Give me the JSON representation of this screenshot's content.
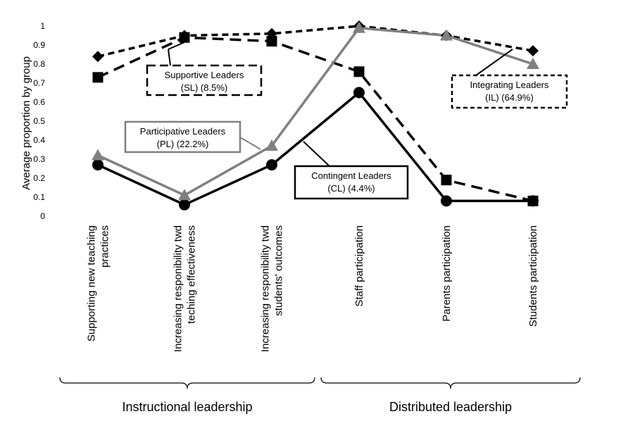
{
  "chart_data": {
    "type": "line",
    "ylabel": "Average proportion by group",
    "ylim": [
      0,
      1
    ],
    "yticks": [
      "0",
      "0.1",
      "0.2",
      "0.3",
      "0.4",
      "0.5",
      "0.6",
      "0.7",
      "0.8",
      "0.9",
      "1"
    ],
    "categories": [
      [
        "Supporting new teaching",
        "practices"
      ],
      [
        "Increasing responibility twd",
        "teching effectiveness"
      ],
      [
        "Increasing responibility twd",
        "students' outcomes"
      ],
      [
        "Staff participation"
      ],
      [
        "Parents participation"
      ],
      [
        "Students participation"
      ]
    ],
    "groups": [
      {
        "label": "Instructional leadership",
        "from": 0,
        "to": 2
      },
      {
        "label": "Distributed leadership",
        "from": 3,
        "to": 5
      }
    ],
    "grid": false,
    "legend": "annotations",
    "series": [
      {
        "key": "IL",
        "values": [
          0.84,
          0.95,
          0.96,
          1.0,
          0.95,
          0.87
        ],
        "color": "#000000",
        "dash": "dashed",
        "marker": "diamond",
        "label": [
          "Integrating Leaders",
          "(IL) (64.9%)"
        ]
      },
      {
        "key": "SL",
        "values": [
          0.73,
          0.94,
          0.92,
          0.76,
          0.19,
          0.08
        ],
        "color": "#000000",
        "dash": "longdash",
        "marker": "square",
        "label": [
          "Supportive Leaders",
          "(SL) (8.5%)"
        ]
      },
      {
        "key": "PL",
        "values": [
          0.32,
          0.11,
          0.37,
          0.99,
          0.95,
          0.8
        ],
        "color": "#808080",
        "dash": "solid",
        "marker": "triangle",
        "label": [
          "Participative Leaders",
          "(PL) (22.2%)"
        ]
      },
      {
        "key": "CL",
        "values": [
          0.27,
          0.06,
          0.27,
          0.65,
          0.08,
          0.08
        ],
        "color": "#000000",
        "dash": "solid",
        "marker": "circle",
        "label": [
          "Contingent Leaders",
          "(CL) (4.4%)"
        ]
      }
    ]
  }
}
